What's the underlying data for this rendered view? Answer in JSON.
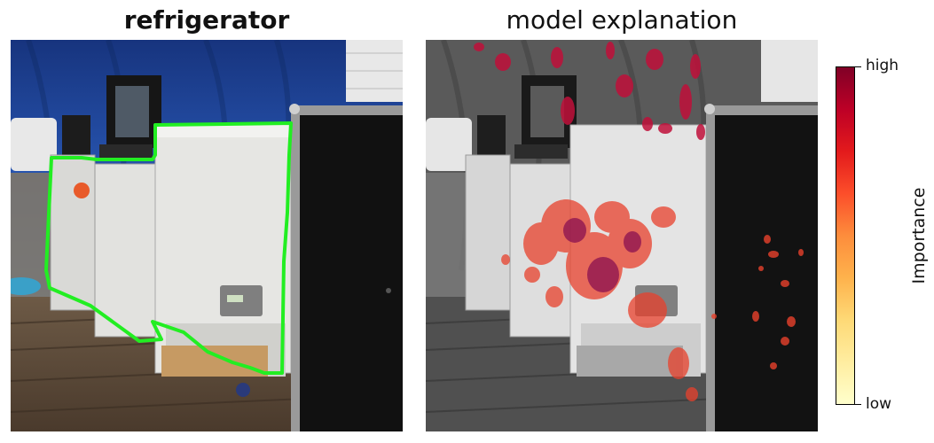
{
  "left_panel": {
    "title": "refrigerator"
  },
  "right_panel": {
    "title": "model explanation"
  },
  "colorbar": {
    "label": "Importance",
    "high_label": "high",
    "low_label": "low",
    "colors": [
      "#800026",
      "#bd0026",
      "#e31a1c",
      "#fc4e2a",
      "#fd8d3c",
      "#feb24c",
      "#fed976",
      "#ffeda0",
      "#ffffcc"
    ]
  },
  "segmentation_outline_color": "#22ee22"
}
